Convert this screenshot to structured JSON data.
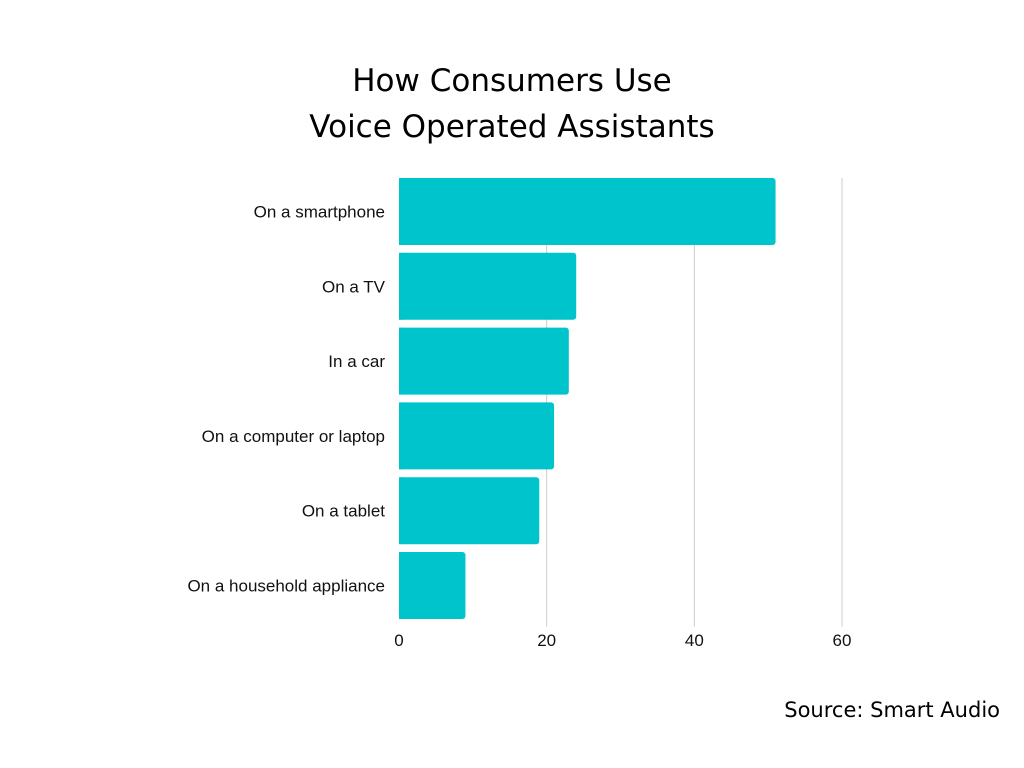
{
  "chart_data": {
    "type": "bar",
    "orientation": "horizontal",
    "title_lines": [
      "How Consumers Use",
      "Voice Operated Assistants"
    ],
    "categories": [
      "On a smartphone",
      "On a TV",
      "In a car",
      "On a computer or laptop",
      "On a tablet",
      "On a household appliance"
    ],
    "values": [
      51,
      24,
      23,
      21,
      19,
      9
    ],
    "xlim": [
      0,
      60
    ],
    "xticks": [
      "0",
      "20",
      "40",
      "60"
    ],
    "grid": true,
    "legend": "none",
    "bar_color": "#00C4CB",
    "grid_color": "#cccccc"
  },
  "source": "Source: Smart Audio"
}
